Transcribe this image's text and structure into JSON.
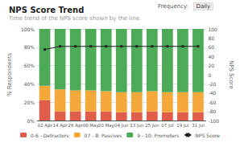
{
  "chart_data": {
    "type": "bar",
    "title": "NPS Score Trend",
    "subtitle": "Time trend of the NPS score shown by the line.",
    "annotations": [
      "Frequency:",
      "Daily"
    ],
    "categories": [
      "02 Apr",
      "14 Apr",
      "26 Apr",
      "08 May",
      "20 May",
      "04 Jun",
      "13 Jun",
      "25 Jun",
      "07 Jul",
      "19 Jul",
      "31 Jul"
    ],
    "stacked": true,
    "series": [
      {
        "name": "0-6 - Detractors",
        "color": "#e05c4b",
        "values": [
          22,
          10,
          10,
          10,
          10,
          9,
          9,
          10,
          9,
          9,
          9
        ]
      },
      {
        "name": "07 - 8: Passives",
        "color": "#f5a83a",
        "values": [
          16,
          24,
          23,
          23,
          22,
          22,
          22,
          22,
          22,
          22,
          22
        ]
      },
      {
        "name": "9 - 10: Promoters",
        "color": "#4daa57",
        "values": [
          62,
          66,
          67,
          67,
          68,
          69,
          69,
          68,
          69,
          69,
          69
        ]
      },
      {
        "name": "NPS Score",
        "type": "line",
        "axis": "y2",
        "color": "#222222",
        "marker": "square",
        "line_style": "solid",
        "values": [
          55,
          62,
          62,
          62,
          62,
          62,
          62,
          62,
          62,
          62,
          62
        ]
      }
    ],
    "ylabel": "% Respondents",
    "y2label": "NPS Score",
    "ylim": [
      0,
      100
    ],
    "yticks": [
      {
        "value": 0,
        "label": "0%"
      },
      {
        "value": 20,
        "label": "20%"
      },
      {
        "value": 40,
        "label": "40%"
      },
      {
        "value": 60,
        "label": "60%"
      },
      {
        "value": 80,
        "label": "80%"
      },
      {
        "value": 100,
        "label": "100%"
      }
    ],
    "y2lim": [
      -100,
      100
    ],
    "y2ticks": [
      -100,
      -80,
      -60,
      -40,
      -20,
      0,
      20,
      40,
      60,
      80,
      100
    ],
    "grid": true,
    "legend": "bottom"
  }
}
